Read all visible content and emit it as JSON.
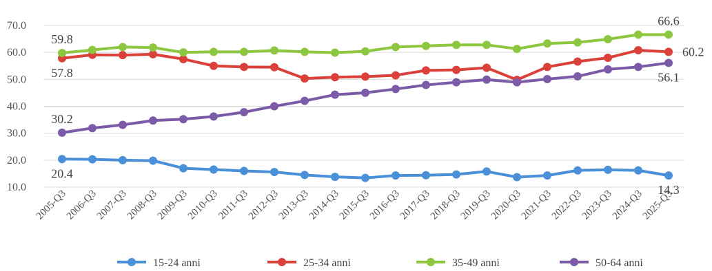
{
  "chart_data": {
    "type": "line",
    "title": "",
    "xlabel": "",
    "ylabel": "",
    "ylim": [
      10,
      70
    ],
    "yticks": [
      "10.0",
      "20.0",
      "30.0",
      "40.0",
      "50.0",
      "60.0",
      "70.0"
    ],
    "grid": "horizontal",
    "legend_position": "bottom",
    "categories": [
      "2005-Q3",
      "2006-Q3",
      "2007-Q3",
      "2008-Q3",
      "2009-Q3",
      "2010-Q3",
      "2011-Q3",
      "2012-Q3",
      "2013-Q3",
      "2014-Q3",
      "2015-Q3",
      "2016-Q3",
      "2017-Q3",
      "2018-Q3",
      "2019-Q3",
      "2020-Q3",
      "2021-Q3",
      "2022-Q3",
      "2023-Q3",
      "2024-Q3",
      "2025-Q3"
    ],
    "series": [
      {
        "name": "15-24 anni",
        "color": "#4a90d9",
        "values": [
          20.4,
          20.3,
          20.0,
          19.8,
          17.0,
          16.5,
          16.0,
          15.6,
          14.5,
          13.8,
          13.4,
          14.3,
          14.4,
          14.7,
          15.8,
          13.7,
          14.3,
          16.2,
          16.4,
          16.2,
          14.3
        ]
      },
      {
        "name": "25-34 anni",
        "color": "#d9413a",
        "values": [
          57.8,
          59.1,
          59.0,
          59.3,
          57.5,
          55.0,
          54.6,
          54.5,
          50.3,
          50.8,
          51.0,
          51.5,
          53.3,
          53.5,
          54.3,
          49.8,
          54.6,
          56.6,
          58.0,
          60.8,
          60.2
        ]
      },
      {
        "name": "35-49 anni",
        "color": "#8dc63f",
        "values": [
          59.8,
          60.9,
          62.0,
          61.8,
          60.0,
          60.2,
          60.2,
          60.7,
          60.2,
          59.9,
          60.4,
          62.0,
          62.4,
          62.8,
          62.8,
          61.3,
          63.3,
          63.7,
          64.9,
          66.6,
          66.6
        ]
      },
      {
        "name": "50-64 anni",
        "color": "#7b5ba8",
        "values": [
          30.2,
          31.9,
          33.1,
          34.7,
          35.2,
          36.2,
          37.8,
          40.0,
          42.0,
          44.3,
          45.0,
          46.4,
          47.9,
          48.9,
          49.9,
          48.9,
          50.1,
          51.1,
          53.7,
          54.6,
          56.1
        ]
      }
    ],
    "annotations": [
      {
        "text": "59.8",
        "series": 2,
        "index": 0,
        "pos": "above"
      },
      {
        "text": "57.8",
        "series": 1,
        "index": 0,
        "pos": "below"
      },
      {
        "text": "30.2",
        "series": 3,
        "index": 0,
        "pos": "above"
      },
      {
        "text": "20.4",
        "series": 0,
        "index": 0,
        "pos": "below"
      },
      {
        "text": "66.6",
        "series": 2,
        "index": 20,
        "pos": "above"
      },
      {
        "text": "60.2",
        "series": 1,
        "index": 20,
        "pos": "right"
      },
      {
        "text": "56.1",
        "series": 3,
        "index": 20,
        "pos": "below"
      },
      {
        "text": "14.3",
        "series": 0,
        "index": 20,
        "pos": "below"
      }
    ]
  }
}
